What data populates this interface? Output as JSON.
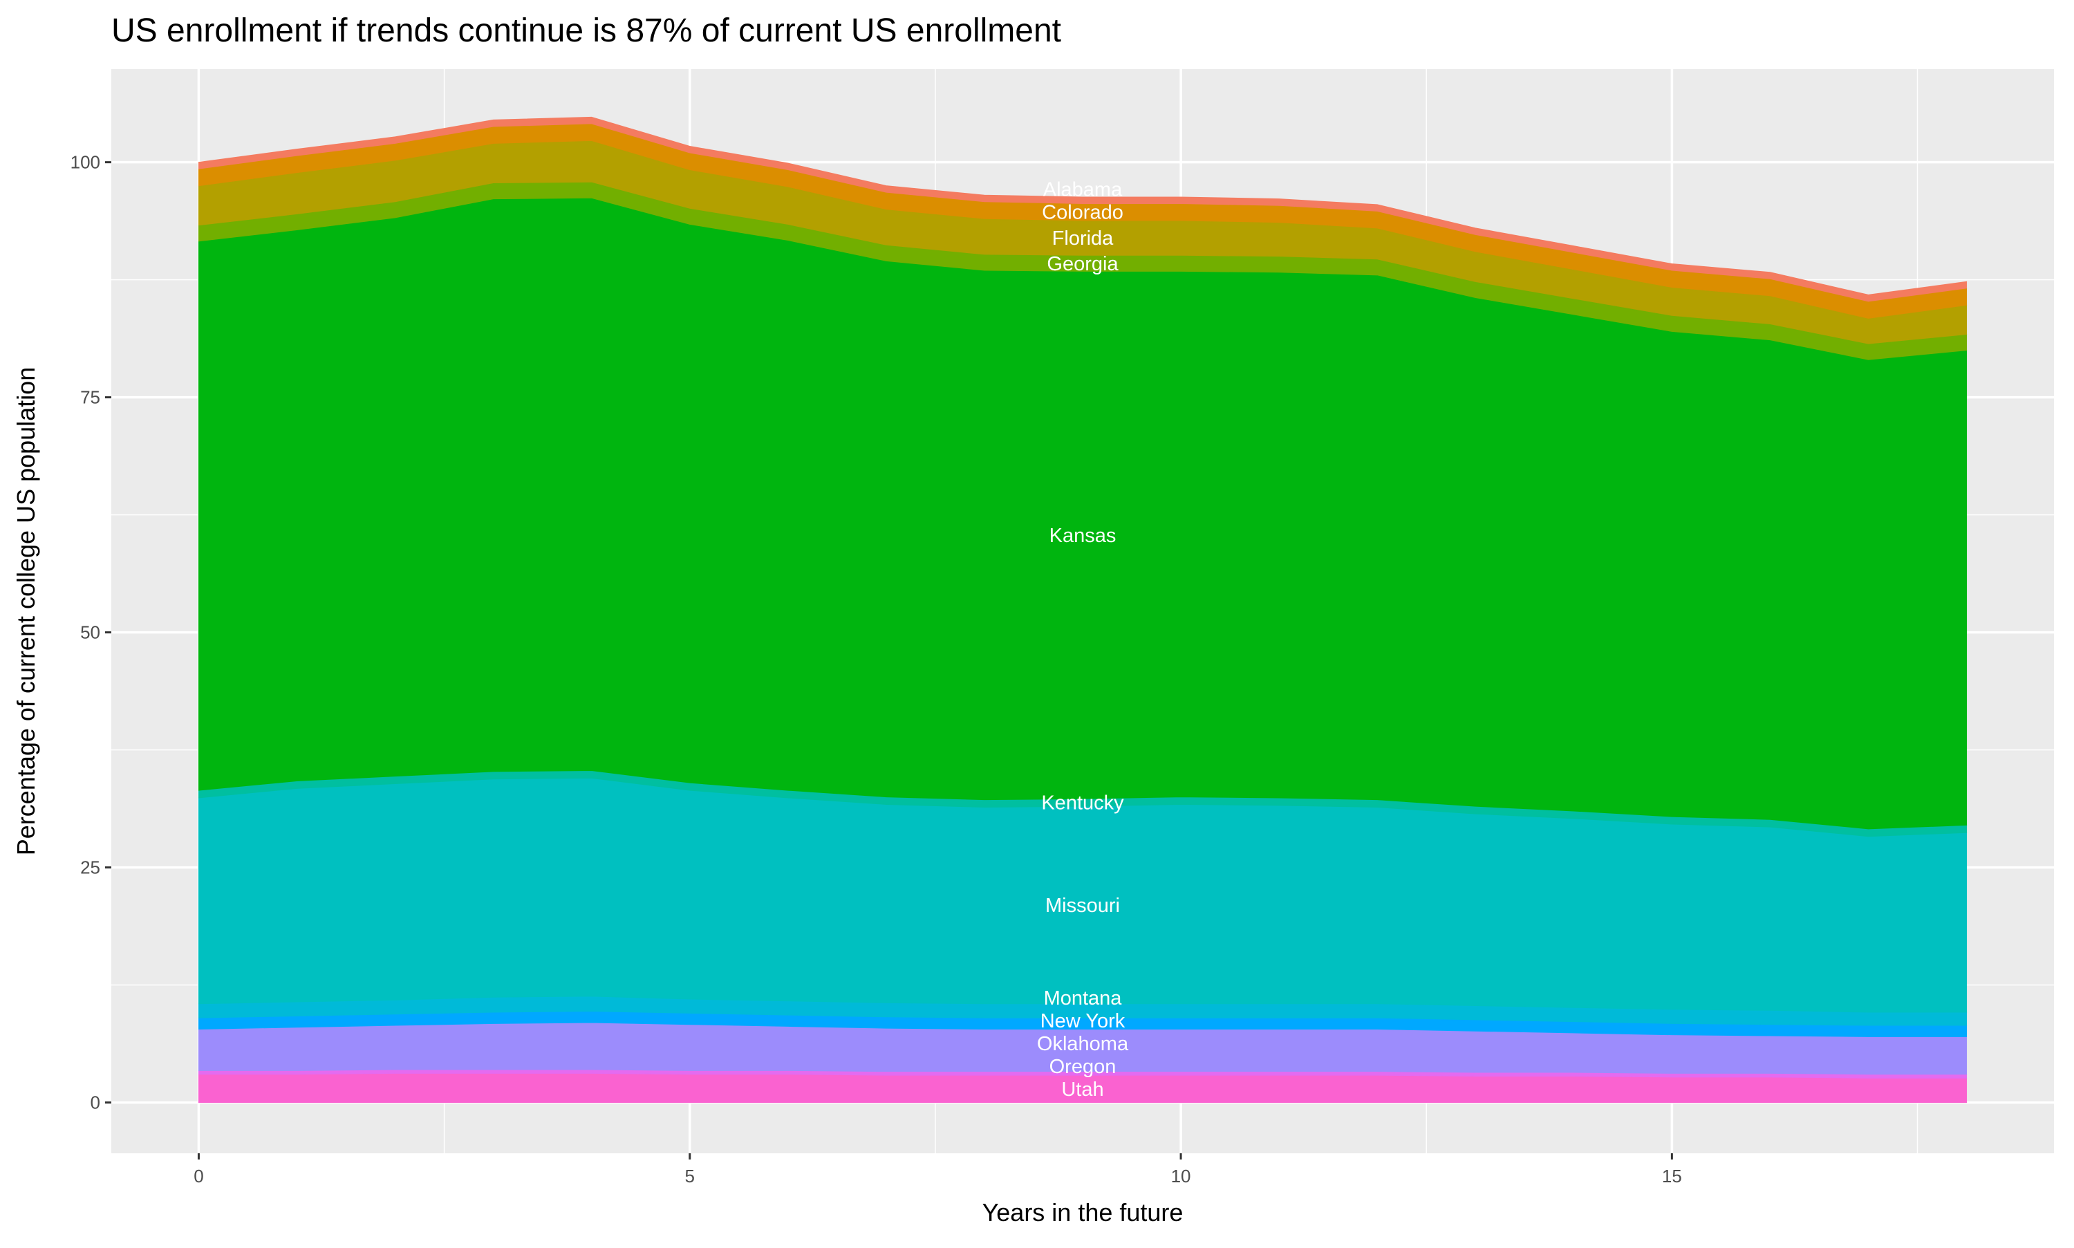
{
  "chart_data": {
    "type": "area",
    "stacked": true,
    "title": "US enrollment if trends continue is 87% of current US enrollment",
    "xlabel": "Years in the future",
    "ylabel": "Percentage of current college US population",
    "xlim": [
      -0.89,
      18.89
    ],
    "ylim": [
      -5.4,
      109.9
    ],
    "x_ticks": [
      0,
      5,
      10,
      15
    ],
    "y_ticks": [
      0,
      25,
      50,
      75,
      100
    ],
    "grid": true,
    "legend": "none",
    "label_x": 9,
    "x": [
      0,
      1,
      2,
      3,
      4,
      5,
      6,
      7,
      8,
      9,
      10,
      11,
      12,
      13,
      14,
      15,
      16,
      17,
      18
    ],
    "series": [
      {
        "name": "Utah",
        "color": "#FA62D0",
        "values": [
          3.0,
          3.0,
          3.1,
          3.1,
          3.1,
          3.0,
          3.0,
          2.9,
          2.9,
          2.9,
          2.9,
          2.9,
          2.9,
          2.8,
          2.8,
          2.7,
          2.7,
          2.6,
          2.6
        ]
      },
      {
        "name": "Oregon",
        "color": "#E46BF0",
        "values": [
          0.4,
          0.4,
          0.4,
          0.4,
          0.4,
          0.4,
          0.4,
          0.4,
          0.4,
          0.4,
          0.4,
          0.4,
          0.4,
          0.4,
          0.4,
          0.4,
          0.4,
          0.4,
          0.4
        ]
      },
      {
        "name": "Oklahoma",
        "color": "#9C8CFC",
        "values": [
          4.4,
          4.6,
          4.7,
          4.9,
          5.0,
          4.9,
          4.7,
          4.6,
          4.5,
          4.5,
          4.5,
          4.5,
          4.5,
          4.4,
          4.2,
          4.1,
          4.0,
          4.0,
          4.0
        ]
      },
      {
        "name": "New York",
        "color": "#00A8FF",
        "values": [
          1.2,
          1.2,
          1.2,
          1.2,
          1.2,
          1.2,
          1.2,
          1.2,
          1.2,
          1.2,
          1.2,
          1.2,
          1.2,
          1.2,
          1.2,
          1.2,
          1.2,
          1.2,
          1.2
        ]
      },
      {
        "name": "Montana",
        "color": "#00BAD8",
        "values": [
          1.5,
          1.5,
          1.5,
          1.6,
          1.6,
          1.5,
          1.5,
          1.5,
          1.5,
          1.5,
          1.5,
          1.5,
          1.5,
          1.5,
          1.5,
          1.5,
          1.5,
          1.4,
          1.4
        ]
      },
      {
        "name": "Missouri",
        "color": "#00C0C0",
        "values": [
          21.9,
          22.7,
          23.0,
          23.2,
          23.2,
          22.2,
          21.6,
          21.1,
          20.9,
          21.0,
          21.2,
          21.1,
          20.9,
          20.4,
          20.1,
          19.7,
          19.5,
          18.7,
          19.1
        ]
      },
      {
        "name": "Kentucky",
        "color": "#00BFA0",
        "values": [
          0.8,
          0.8,
          0.8,
          0.8,
          0.8,
          0.8,
          0.8,
          0.8,
          0.8,
          0.8,
          0.8,
          0.8,
          0.8,
          0.8,
          0.8,
          0.8,
          0.8,
          0.8,
          0.8
        ]
      },
      {
        "name": "Kansas",
        "color": "#00B50F",
        "values": [
          58.4,
          58.6,
          59.4,
          60.9,
          60.9,
          59.4,
          58.5,
          57.0,
          56.3,
          56.1,
          55.9,
          55.9,
          55.8,
          54.1,
          52.8,
          51.6,
          51.0,
          49.9,
          50.5
        ]
      },
      {
        "name": "Georgia",
        "color": "#72AF00",
        "values": [
          1.7,
          1.7,
          1.7,
          1.7,
          1.7,
          1.7,
          1.7,
          1.7,
          1.7,
          1.7,
          1.7,
          1.7,
          1.7,
          1.7,
          1.7,
          1.7,
          1.7,
          1.7,
          1.7
        ]
      },
      {
        "name": "Florida",
        "color": "#B3A000",
        "values": [
          4.2,
          4.4,
          4.4,
          4.2,
          4.4,
          4.1,
          4.0,
          3.8,
          3.8,
          3.7,
          3.7,
          3.6,
          3.3,
          3.2,
          3.1,
          3.0,
          3.0,
          2.7,
          3.1
        ]
      },
      {
        "name": "Colorado",
        "color": "#DB8E00",
        "values": [
          1.8,
          1.8,
          1.8,
          1.8,
          1.8,
          1.8,
          1.8,
          1.8,
          1.8,
          1.8,
          1.8,
          1.8,
          1.8,
          1.8,
          1.8,
          1.8,
          1.8,
          1.8,
          1.8
        ]
      },
      {
        "name": "Alabama",
        "color": "#F47B60",
        "values": [
          0.7,
          0.7,
          0.7,
          0.7,
          0.7,
          0.7,
          0.7,
          0.7,
          0.7,
          0.7,
          0.7,
          0.7,
          0.7,
          0.7,
          0.7,
          0.7,
          0.7,
          0.7,
          0.7
        ]
      }
    ]
  }
}
